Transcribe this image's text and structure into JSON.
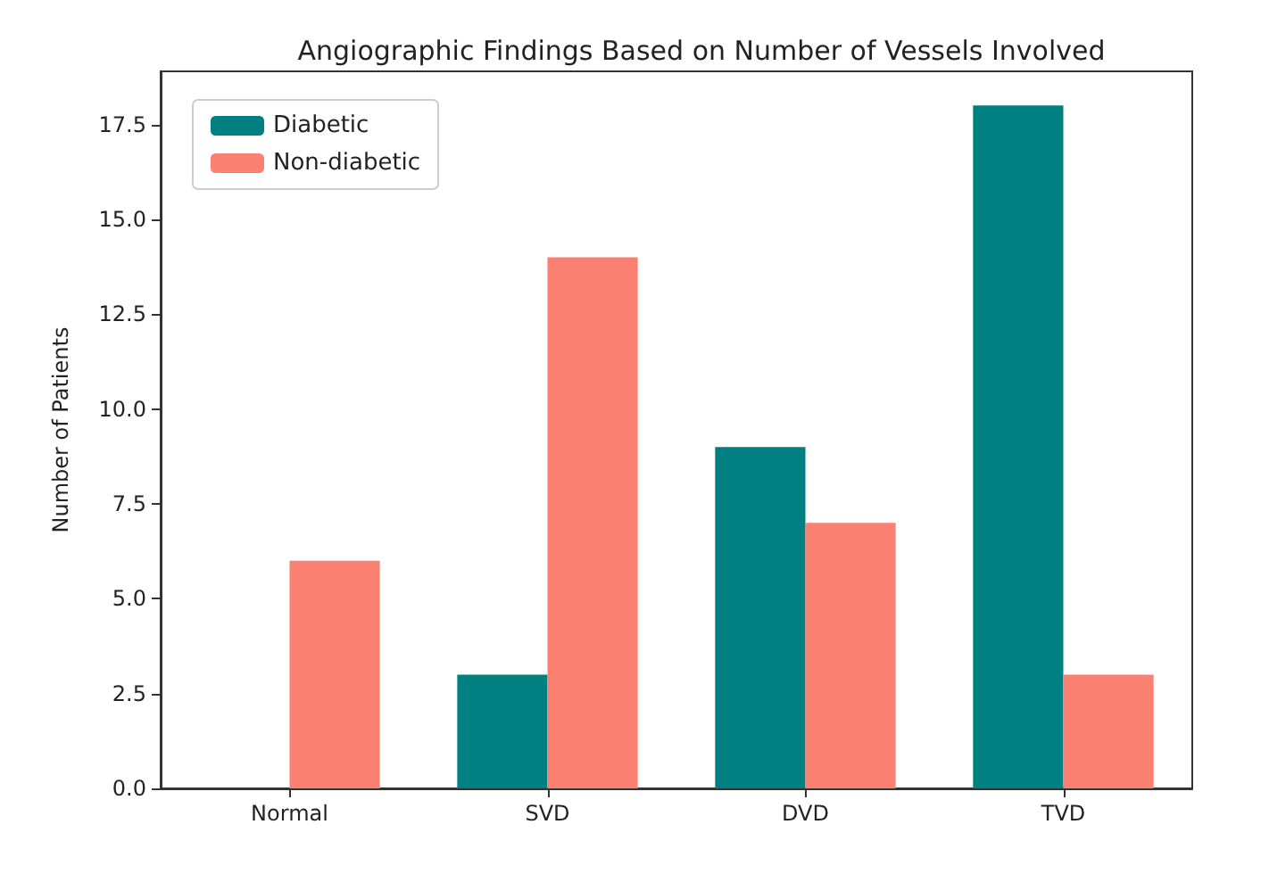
{
  "chart_data": {
    "type": "bar",
    "title": "Angiographic Findings Based on Number of Vessels Involved",
    "ylabel": "Number of Patients",
    "categories": [
      "Normal",
      "SVD",
      "DVD",
      "TVD"
    ],
    "series": [
      {
        "name": "Diabetic",
        "color": "#008080",
        "values": [
          0,
          3,
          9,
          18
        ]
      },
      {
        "name": "Non-diabetic",
        "color": "#fa8072",
        "values": [
          6,
          14,
          7,
          3
        ]
      }
    ],
    "ylim": [
      0,
      18.9
    ],
    "yticks": [
      {
        "value": 0,
        "label": "0.0"
      },
      2.5,
      {
        "value": 5,
        "label": "5.0"
      },
      7.5,
      {
        "value": 10,
        "label": "10.0"
      },
      12.5,
      {
        "value": 15,
        "label": "15.0"
      },
      17.5
    ],
    "grid": false,
    "legend": "top left"
  }
}
